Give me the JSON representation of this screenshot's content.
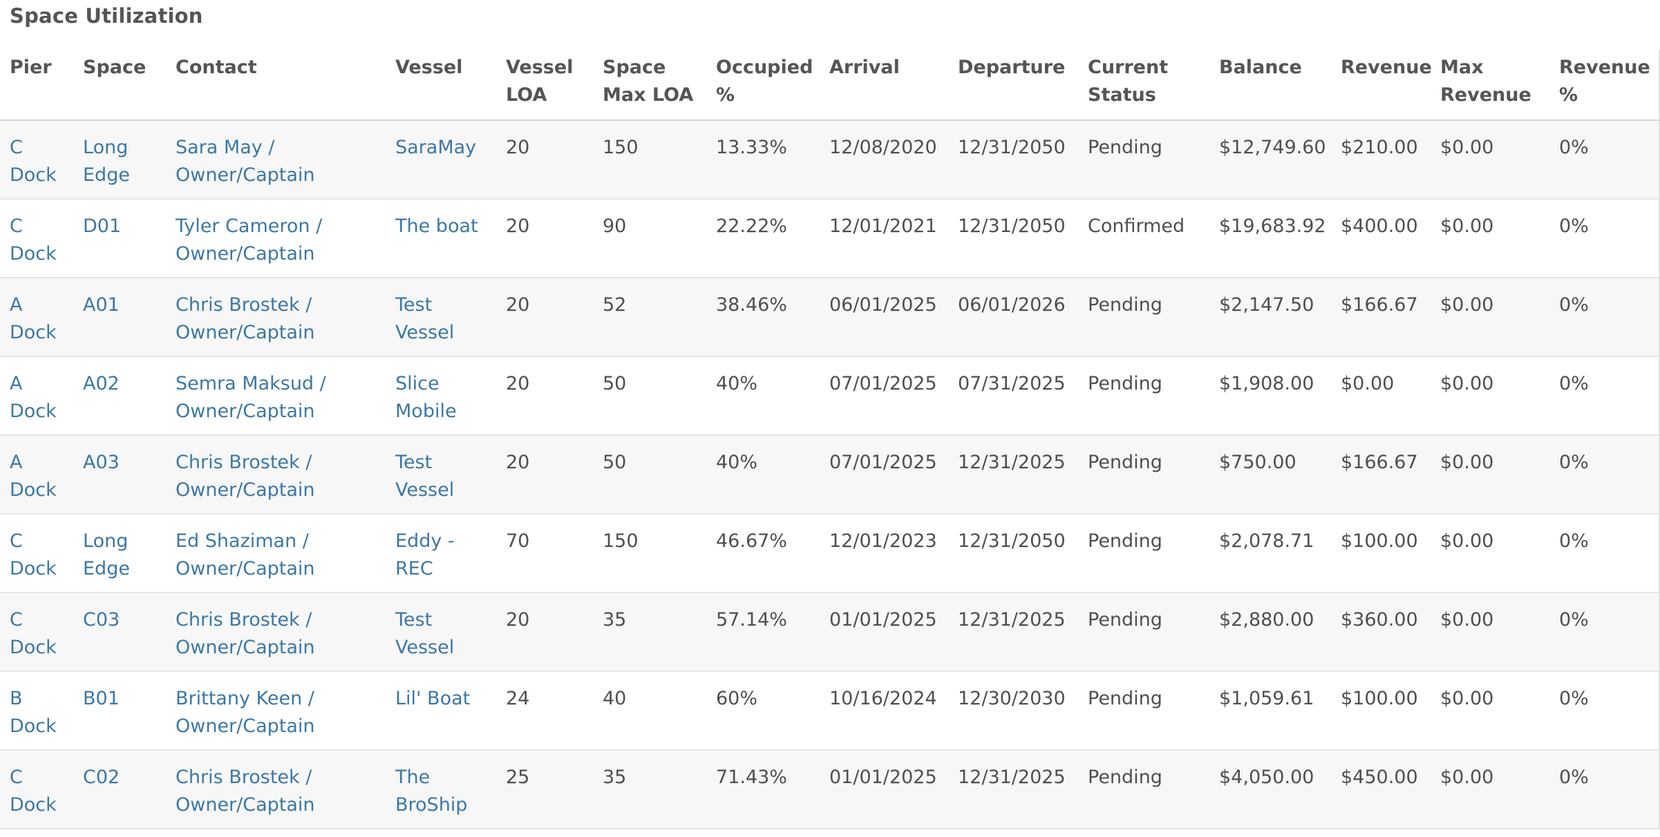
{
  "title": "Space Utilization",
  "colors": {
    "link": "#3b78a6",
    "text": "#4f4f4f",
    "row_alt": "#f7f7f7"
  },
  "columns": [
    {
      "key": "pier",
      "label": "Pier"
    },
    {
      "key": "space",
      "label": "Space"
    },
    {
      "key": "contact",
      "label": "Contact"
    },
    {
      "key": "vessel",
      "label": "Vessel"
    },
    {
      "key": "vessel_loa",
      "label": "Vessel LOA"
    },
    {
      "key": "space_max_loa",
      "label": "Space Max LOA"
    },
    {
      "key": "occupied",
      "label": "Occupied %"
    },
    {
      "key": "arrival",
      "label": "Arrival"
    },
    {
      "key": "departure",
      "label": "Departure"
    },
    {
      "key": "status",
      "label": "Current Status"
    },
    {
      "key": "balance",
      "label": "Balance"
    },
    {
      "key": "revenue",
      "label": "Revenue"
    },
    {
      "key": "max_revenue",
      "label": "Max Revenue"
    },
    {
      "key": "revenue_pct",
      "label": "Revenue %"
    }
  ],
  "rows": [
    {
      "pier": "C Dock",
      "space": "Long Edge",
      "contact": "Sara May / Owner/Captain",
      "vessel": "SaraMay",
      "vessel_loa": "20",
      "space_max_loa": "150",
      "occupied": "13.33%",
      "arrival": "12/08/2020",
      "departure": "12/31/2050",
      "status": "Pending",
      "balance": "$12,749.60",
      "revenue": "$210.00",
      "max_revenue": "$0.00",
      "revenue_pct": "0%"
    },
    {
      "pier": "C Dock",
      "space": "D01",
      "contact": "Tyler Cameron / Owner/Captain",
      "vessel": "The boat",
      "vessel_loa": "20",
      "space_max_loa": "90",
      "occupied": "22.22%",
      "arrival": "12/01/2021",
      "departure": "12/31/2050",
      "status": "Confirmed",
      "balance": "$19,683.92",
      "revenue": "$400.00",
      "max_revenue": "$0.00",
      "revenue_pct": "0%"
    },
    {
      "pier": "A Dock",
      "space": "A01",
      "contact": "Chris Brostek / Owner/Captain",
      "vessel": "Test Vessel",
      "vessel_loa": "20",
      "space_max_loa": "52",
      "occupied": "38.46%",
      "arrival": "06/01/2025",
      "departure": "06/01/2026",
      "status": "Pending",
      "balance": "$2,147.50",
      "revenue": "$166.67",
      "max_revenue": "$0.00",
      "revenue_pct": "0%"
    },
    {
      "pier": "A Dock",
      "space": "A02",
      "contact": "Semra Maksud / Owner/Captain",
      "vessel": "Slice Mobile",
      "vessel_loa": "20",
      "space_max_loa": "50",
      "occupied": "40%",
      "arrival": "07/01/2025",
      "departure": "07/31/2025",
      "status": "Pending",
      "balance": "$1,908.00",
      "revenue": "$0.00",
      "max_revenue": "$0.00",
      "revenue_pct": "0%"
    },
    {
      "pier": "A Dock",
      "space": "A03",
      "contact": "Chris Brostek / Owner/Captain",
      "vessel": "Test Vessel",
      "vessel_loa": "20",
      "space_max_loa": "50",
      "occupied": "40%",
      "arrival": "07/01/2025",
      "departure": "12/31/2025",
      "status": "Pending",
      "balance": "$750.00",
      "revenue": "$166.67",
      "max_revenue": "$0.00",
      "revenue_pct": "0%"
    },
    {
      "pier": "C Dock",
      "space": "Long Edge",
      "contact": "Ed Shaziman / Owner/Captain",
      "vessel": "Eddy - REC",
      "vessel_loa": "70",
      "space_max_loa": "150",
      "occupied": "46.67%",
      "arrival": "12/01/2023",
      "departure": "12/31/2050",
      "status": "Pending",
      "balance": "$2,078.71",
      "revenue": "$100.00",
      "max_revenue": "$0.00",
      "revenue_pct": "0%"
    },
    {
      "pier": "C Dock",
      "space": "C03",
      "contact": "Chris Brostek / Owner/Captain",
      "vessel": "Test Vessel",
      "vessel_loa": "20",
      "space_max_loa": "35",
      "occupied": "57.14%",
      "arrival": "01/01/2025",
      "departure": "12/31/2025",
      "status": "Pending",
      "balance": "$2,880.00",
      "revenue": "$360.00",
      "max_revenue": "$0.00",
      "revenue_pct": "0%"
    },
    {
      "pier": "B Dock",
      "space": "B01",
      "contact": "Brittany Keen / Owner/Captain",
      "vessel": "Lil' Boat",
      "vessel_loa": "24",
      "space_max_loa": "40",
      "occupied": "60%",
      "arrival": "10/16/2024",
      "departure": "12/30/2030",
      "status": "Pending",
      "balance": "$1,059.61",
      "revenue": "$100.00",
      "max_revenue": "$0.00",
      "revenue_pct": "0%"
    },
    {
      "pier": "C Dock",
      "space": "C02",
      "contact": "Chris Brostek / Owner/Captain",
      "vessel": "The BroShip",
      "vessel_loa": "25",
      "space_max_loa": "35",
      "occupied": "71.43%",
      "arrival": "01/01/2025",
      "departure": "12/31/2025",
      "status": "Pending",
      "balance": "$4,050.00",
      "revenue": "$450.00",
      "max_revenue": "$0.00",
      "revenue_pct": "0%"
    }
  ]
}
